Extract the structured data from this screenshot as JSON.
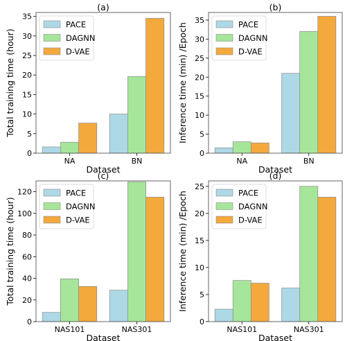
{
  "colors": {
    "PACE": "#add8e6",
    "DAGNN": "#a6e69a",
    "D-VAE": "#f4a93c",
    "bar_edge": "#8a8a8a",
    "axis": "#555555"
  },
  "chart_data": [
    {
      "type": "bar",
      "title": "(a)",
      "xlabel": "Dataset",
      "ylabel": "Total training time (hour)",
      "categories": [
        "NA",
        "BN"
      ],
      "series": [
        {
          "name": "PACE",
          "values": [
            1.6,
            10.0
          ]
        },
        {
          "name": "DAGNN",
          "values": [
            2.8,
            19.6
          ]
        },
        {
          "name": "D-VAE",
          "values": [
            7.7,
            34.5
          ]
        }
      ],
      "ylim": [
        0,
        36
      ],
      "yticks": [
        0,
        5,
        10,
        15,
        20,
        25,
        30,
        35
      ],
      "legend": "top-left",
      "grid": false
    },
    {
      "type": "bar",
      "title": "(b)",
      "xlabel": "Dataset",
      "ylabel": "Inference time (min) /Epoch",
      "categories": [
        "NA",
        "BN"
      ],
      "series": [
        {
          "name": "PACE",
          "values": [
            1.4,
            21.0
          ]
        },
        {
          "name": "DAGNN",
          "values": [
            3.0,
            32.0
          ]
        },
        {
          "name": "D-VAE",
          "values": [
            2.7,
            36.0
          ]
        }
      ],
      "ylim": [
        0,
        37
      ],
      "yticks": [
        0,
        5,
        10,
        15,
        20,
        25,
        30,
        35
      ],
      "legend": "top-left",
      "grid": false
    },
    {
      "type": "bar",
      "title": "(c)",
      "xlabel": "Dataset",
      "ylabel": "Total training time (hour)",
      "categories": [
        "NAS101",
        "NAS301"
      ],
      "series": [
        {
          "name": "PACE",
          "values": [
            8.5,
            29.0
          ]
        },
        {
          "name": "DAGNN",
          "values": [
            39.5,
            129.0
          ]
        },
        {
          "name": "D-VAE",
          "values": [
            32.5,
            115.0
          ]
        }
      ],
      "ylim": [
        0,
        130
      ],
      "yticks": [
        0,
        20,
        40,
        60,
        80,
        100,
        120
      ],
      "legend": "top-left",
      "grid": false
    },
    {
      "type": "bar",
      "title": "(d)",
      "xlabel": "Dataset",
      "ylabel": "Inference time (min) /Epoch",
      "categories": [
        "NAS101",
        "NAS301"
      ],
      "series": [
        {
          "name": "PACE",
          "values": [
            2.3,
            6.2
          ]
        },
        {
          "name": "DAGNN",
          "values": [
            7.6,
            25.0
          ]
        },
        {
          "name": "D-VAE",
          "values": [
            7.1,
            23.0
          ]
        }
      ],
      "ylim": [
        0,
        26
      ],
      "yticks": [
        0,
        5,
        10,
        15,
        20,
        25
      ],
      "legend": "top-left",
      "grid": false
    }
  ]
}
